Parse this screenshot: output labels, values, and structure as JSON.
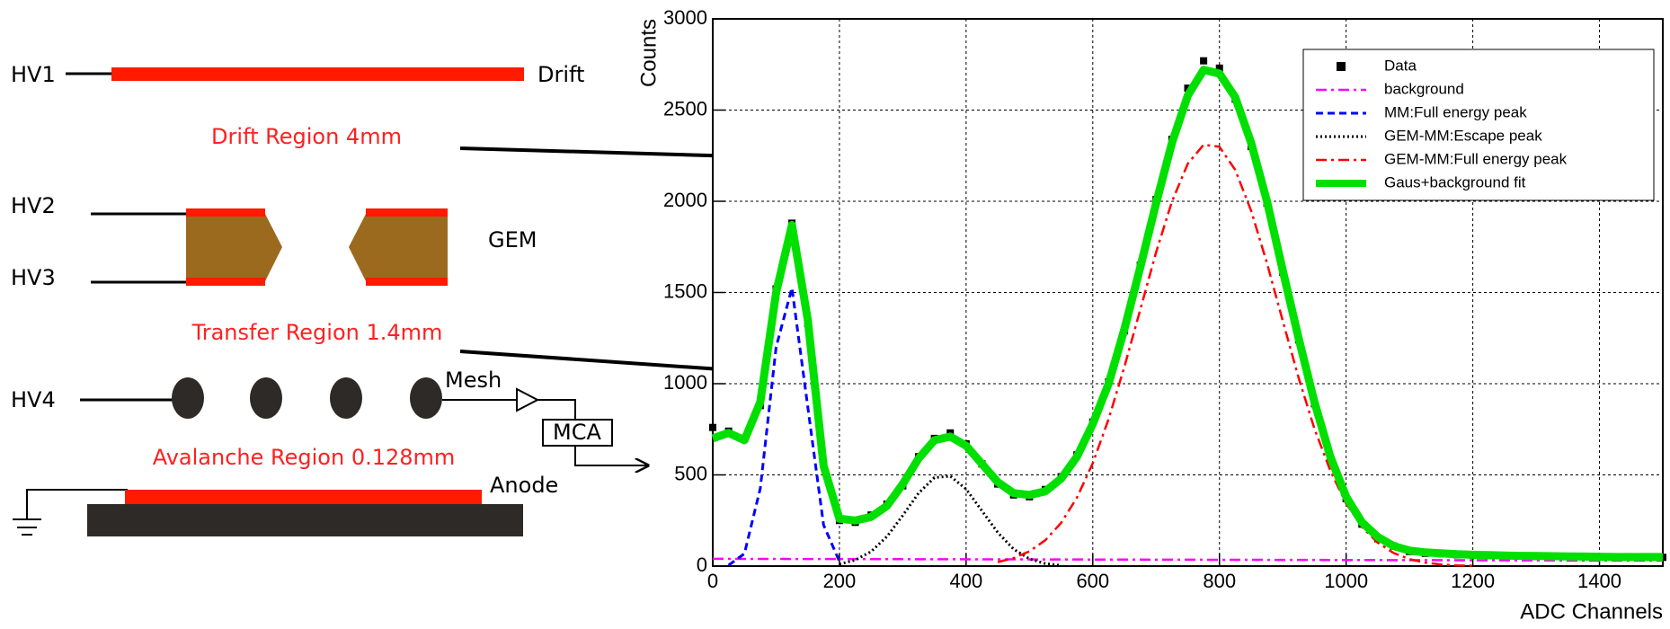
{
  "diagram": {
    "hv1": "HV1",
    "drift": "Drift",
    "drift_region": "Drift Region 4mm",
    "hv2": "HV2",
    "hv3": "HV3",
    "gem": "GEM",
    "transfer_region": "Transfer Region 1.4mm",
    "hv4": "HV4",
    "mesh": "Mesh",
    "mca": "MCA",
    "avalanche_region": "Avalanche Region 0.128mm",
    "anode": "Anode"
  },
  "chart_data": {
    "type": "line",
    "x_label": "ADC Channels",
    "y_label": "Counts",
    "xlim": [
      0,
      1500
    ],
    "xticks": [
      0,
      200,
      400,
      600,
      800,
      1000,
      1200,
      1400
    ],
    "ylim": [
      0,
      3000
    ],
    "yticks": [
      0,
      500,
      1000,
      1500,
      2000,
      2500,
      3000
    ],
    "grid": true,
    "legend": "top-right",
    "x": [
      0,
      25,
      50,
      75,
      100,
      125,
      150,
      175,
      200,
      225,
      250,
      275,
      300,
      325,
      350,
      375,
      400,
      425,
      450,
      475,
      500,
      525,
      550,
      575,
      600,
      625,
      650,
      675,
      700,
      725,
      750,
      775,
      800,
      825,
      850,
      875,
      900,
      925,
      950,
      975,
      1000,
      1025,
      1050,
      1075,
      1100,
      1125,
      1150,
      1175,
      1200,
      1225,
      1250,
      1275,
      1300,
      1325,
      1350,
      1375,
      1400,
      1425,
      1450,
      1475,
      1500
    ],
    "series": [
      {
        "name": "Data",
        "color": "#000000",
        "style": "markers",
        "values": [
          760,
          740,
          700,
          880,
          1520,
          1880,
          1330,
          560,
          250,
          240,
          280,
          340,
          440,
          600,
          700,
          730,
          670,
          560,
          450,
          390,
          380,
          420,
          490,
          610,
          790,
          1010,
          1290,
          1650,
          2010,
          2340,
          2620,
          2770,
          2730,
          2560,
          2300,
          1990,
          1610,
          1240,
          890,
          590,
          370,
          230,
          150,
          110,
          80,
          70,
          68,
          62,
          60,
          58,
          57,
          55,
          53,
          52,
          52,
          51,
          50,
          49,
          50,
          49,
          48
        ]
      },
      {
        "name": "background",
        "color": "#ff00ff",
        "style": "dashdot",
        "x": [
          0,
          1500
        ],
        "values": [
          40,
          30
        ]
      },
      {
        "name": "MM:Full energy peak",
        "color": "#0000ff",
        "style": "dashed",
        "x": [
          25,
          50,
          75,
          100,
          125,
          150,
          175,
          200
        ],
        "values": [
          5,
          68,
          426,
          1201,
          1525,
          873,
          225,
          26
        ]
      },
      {
        "name": "GEM-MM:Escape peak",
        "color": "#000000",
        "style": "dotted",
        "x": [
          200,
          225,
          250,
          275,
          300,
          325,
          350,
          375,
          400,
          425,
          450,
          475,
          500,
          525,
          550
        ],
        "values": [
          11,
          33,
          80,
          162,
          278,
          400,
          485,
          493,
          422,
          303,
          184,
          93,
          40,
          14,
          4
        ]
      },
      {
        "name": "GEM-MM:Full energy peak",
        "color": "#ff0000",
        "style": "dashdot",
        "x": [
          450,
          475,
          500,
          525,
          550,
          575,
          600,
          625,
          650,
          675,
          700,
          725,
          750,
          775,
          800,
          825,
          850,
          875,
          900,
          925,
          950,
          975,
          1000,
          1025,
          1050,
          1075,
          1100,
          1125,
          1150,
          1175,
          1200
        ],
        "values": [
          22,
          44,
          81,
          142,
          237,
          376,
          564,
          806,
          1093,
          1407,
          1721,
          1999,
          2206,
          2310,
          2299,
          2172,
          1948,
          1661,
          1344,
          1032,
          753,
          523,
          343,
          215,
          128,
          72,
          38,
          19,
          9,
          4,
          2
        ]
      },
      {
        "name": "Gaus+background fit",
        "color": "#00e000",
        "style": "thick",
        "values": [
          700,
          730,
          690,
          900,
          1500,
          1870,
          1350,
          550,
          260,
          250,
          270,
          330,
          450,
          590,
          690,
          710,
          660,
          560,
          460,
          400,
          390,
          410,
          480,
          600,
          780,
          1000,
          1300,
          1640,
          1990,
          2320,
          2580,
          2720,
          2700,
          2570,
          2320,
          2000,
          1620,
          1250,
          900,
          600,
          380,
          240,
          160,
          110,
          85,
          75,
          70,
          65,
          62,
          60,
          58,
          56,
          55,
          54,
          53,
          52,
          51,
          50,
          50,
          50,
          50
        ]
      }
    ]
  }
}
